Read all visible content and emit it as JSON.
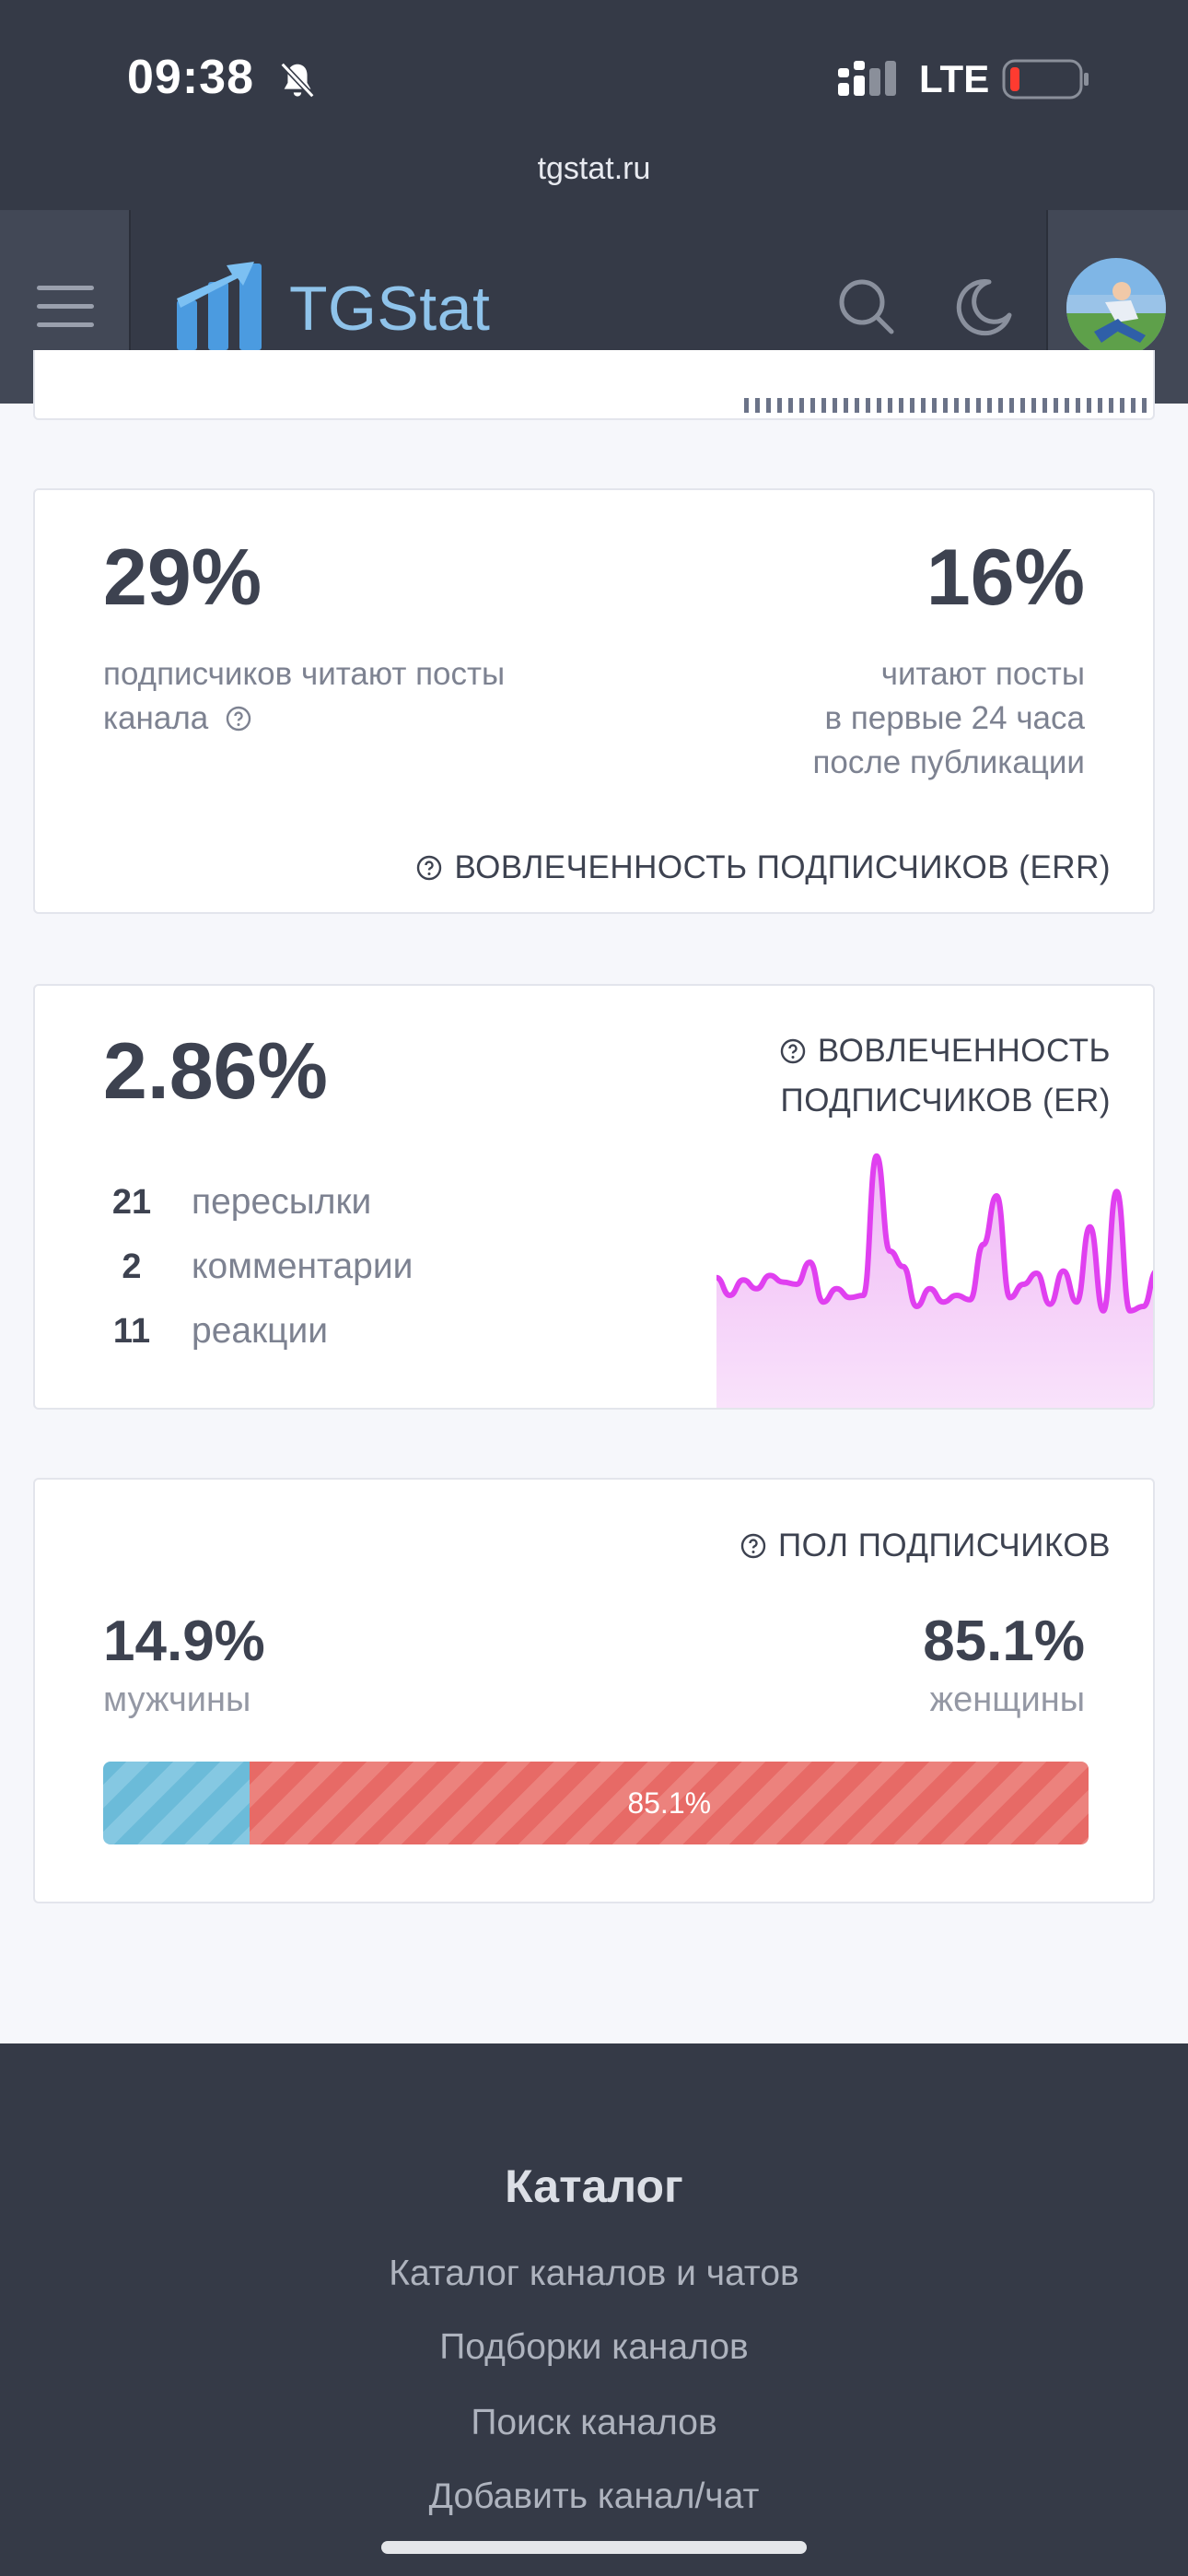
{
  "status_bar": {
    "time": "09:38",
    "network": "LTE",
    "url": "tgstat.ru"
  },
  "header": {
    "brand": "TGStat"
  },
  "reach_card": {
    "left_value": "29%",
    "left_text": "подписчиков читают посты канала",
    "right_value": "16%",
    "right_text_1": "читают посты",
    "right_text_2": "в первые 24 часа",
    "right_text_3": "после публикации",
    "footer_label": "ВОВЛЕЧЕННОСТЬ ПОДПИСЧИКОВ (ERR)"
  },
  "er_card": {
    "value": "2.86%",
    "title_1": "ВОВЛЕЧЕННОСТЬ",
    "title_2": "ПОДПИСЧИКОВ (ER)",
    "stats": [
      {
        "num": "21",
        "label": "пересылки"
      },
      {
        "num": "2",
        "label": "комментарии"
      },
      {
        "num": "11",
        "label": "реакции"
      }
    ],
    "sparkline": [
      0.43,
      0.35,
      0.42,
      0.38,
      0.44,
      0.41,
      0.4,
      0.5,
      0.32,
      0.38,
      0.34,
      0.35,
      0.98,
      0.55,
      0.48,
      0.3,
      0.38,
      0.32,
      0.35,
      0.33,
      0.58,
      0.8,
      0.34,
      0.4,
      0.45,
      0.31,
      0.46,
      0.32,
      0.66,
      0.28,
      0.82,
      0.28,
      0.3,
      0.46
    ]
  },
  "gender_card": {
    "title": "ПОЛ ПОДПИСЧИКОВ",
    "male_value": "14.9%",
    "male_label": "мужчины",
    "female_value": "85.1%",
    "female_label": "женщины",
    "bar_label": "85.1%",
    "male_fraction": 0.149,
    "colors": {
      "male": "#6bbbd9",
      "female": "#e76a66"
    }
  },
  "footer": {
    "title": "Каталог",
    "links": [
      "Каталог каналов и чатов",
      "Подборки каналов",
      "Поиск каналов",
      "Добавить канал/чат"
    ]
  },
  "colors": {
    "header_bg": "#353a47",
    "brand": "#8fc3ea",
    "spark_line": "#e040f0"
  }
}
